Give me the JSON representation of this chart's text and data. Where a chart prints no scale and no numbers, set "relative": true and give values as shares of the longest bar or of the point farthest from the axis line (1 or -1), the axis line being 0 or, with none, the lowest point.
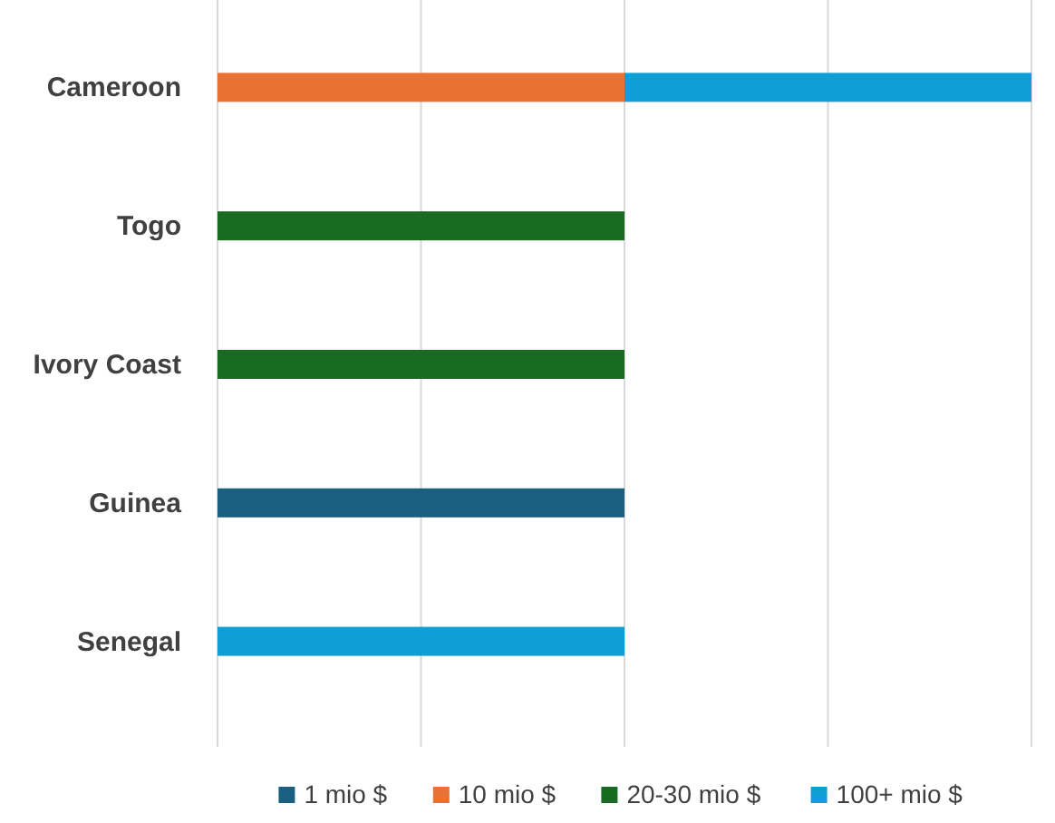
{
  "chart_data": {
    "type": "bar",
    "orientation": "horizontal",
    "stacked": true,
    "relative": true,
    "categories": [
      "Cameroon",
      "Togo",
      "Ivory Coast",
      "Guinea",
      "Senegal"
    ],
    "series": [
      {
        "name": "1 mio $",
        "color": "#1a5e80",
        "values": [
          null,
          null,
          null,
          0.5,
          null
        ]
      },
      {
        "name": "10 mio $",
        "color": "#e97132",
        "values": [
          0.5,
          null,
          null,
          null,
          null
        ]
      },
      {
        "name": "20-30 mio $",
        "color": "#196b24",
        "values": [
          null,
          0.5,
          0.5,
          null,
          null
        ]
      },
      {
        "name": "100+ mio $",
        "color": "#0f9ed5",
        "values": [
          0.5,
          null,
          null,
          null,
          0.5
        ]
      }
    ],
    "grid": "x",
    "legend": "bottom"
  }
}
